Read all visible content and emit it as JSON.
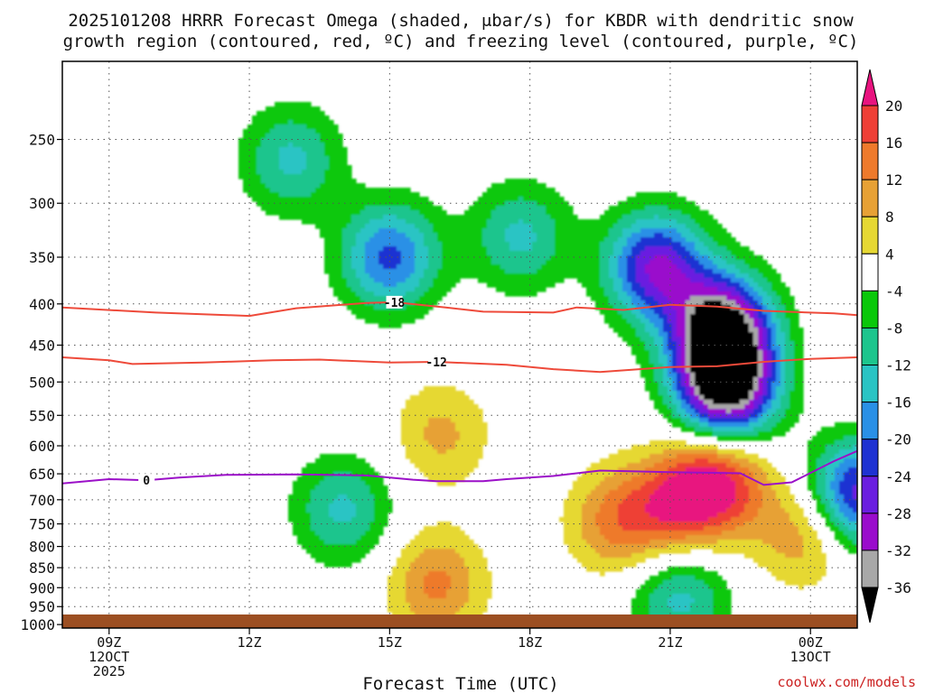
{
  "title_line1": "2025101208 HRRR Forecast Omega (shaded, μbar/s) for KBDR with dendritic snow",
  "title_line2": "growth region (contoured, red, ºC) and freezing level (contoured, purple, ºC)",
  "xlabel": "Forecast Time (UTC)",
  "credit": "coolwx.com/models",
  "chart_data": {
    "type": "heatmap",
    "title": "2025101208 HRRR Forecast Omega (shaded, μbar/s) for KBDR with dendritic snow growth region (contoured, red, ºC) and freezing level (contoured, purple, ºC)",
    "xlabel": "Forecast Time (UTC)",
    "ylabel": "",
    "x_range_hours_utc": [
      8,
      25
    ],
    "y_range_hpa": [
      1010,
      200
    ],
    "y_scale": "log-pressure",
    "grid": true,
    "x_ticks": [
      {
        "hour": 9,
        "line1": "09Z",
        "line2": "12OCT",
        "line3": "2025"
      },
      {
        "hour": 12,
        "line1": "12Z",
        "line2": "",
        "line3": ""
      },
      {
        "hour": 15,
        "line1": "15Z",
        "line2": "",
        "line3": ""
      },
      {
        "hour": 18,
        "line1": "18Z",
        "line2": "",
        "line3": ""
      },
      {
        "hour": 21,
        "line1": "21Z",
        "line2": "",
        "line3": ""
      },
      {
        "hour": 24,
        "line1": "00Z",
        "line2": "13OCT",
        "line3": ""
      }
    ],
    "y_ticks": [
      250,
      300,
      350,
      400,
      450,
      500,
      550,
      600,
      650,
      700,
      750,
      800,
      850,
      900,
      950,
      1000
    ],
    "colorbar": {
      "labels": [
        "20",
        "16",
        "12",
        "8",
        "4",
        "-4",
        "-8",
        "-12",
        "-16",
        "-20",
        "-24",
        "-28",
        "-32",
        "-36"
      ],
      "bins": [
        {
          "from": 20,
          "to": 24,
          "color": "#e8137f"
        },
        {
          "from": 16,
          "to": 20,
          "color": "#ee3f36"
        },
        {
          "from": 12,
          "to": 16,
          "color": "#ee7a2c"
        },
        {
          "from": 8,
          "to": 12,
          "color": "#e7a135"
        },
        {
          "from": 4,
          "to": 8,
          "color": "#e6d833"
        },
        {
          "from": -4,
          "to": 4,
          "color": "#ffffff"
        },
        {
          "from": -8,
          "to": -4,
          "color": "#0ac80a"
        },
        {
          "from": -12,
          "to": -8,
          "color": "#1dc58d"
        },
        {
          "from": -16,
          "to": -12,
          "color": "#2ac4c4"
        },
        {
          "from": -20,
          "to": -16,
          "color": "#2a90e6"
        },
        {
          "from": -24,
          "to": -20,
          "color": "#1e32d2"
        },
        {
          "from": -28,
          "to": -24,
          "color": "#6a1ee0"
        },
        {
          "from": -32,
          "to": -28,
          "color": "#9a0ccc"
        },
        {
          "from": -36,
          "to": -32,
          "color": "#a8a8a8"
        },
        {
          "from": -40,
          "to": -36,
          "color": "#000000"
        }
      ]
    },
    "omega_features": [
      {
        "hour": 22.1,
        "p": 430,
        "value": -38
      },
      {
        "hour": 22.2,
        "p": 510,
        "value": -38
      },
      {
        "hour": 20.7,
        "p": 360,
        "value": -28
      },
      {
        "hour": 15.0,
        "p": 350,
        "value": -21
      },
      {
        "hour": 12.9,
        "p": 265,
        "value": -13
      },
      {
        "hour": 17.8,
        "p": 330,
        "value": -13
      },
      {
        "hour": 22.0,
        "p": 665,
        "value": 22
      },
      {
        "hour": 21.0,
        "p": 720,
        "value": 14
      },
      {
        "hour": 19.8,
        "p": 745,
        "value": 12
      },
      {
        "hour": 16.0,
        "p": 890,
        "value": 13
      },
      {
        "hour": 16.1,
        "p": 580,
        "value": 9
      },
      {
        "hour": 23.9,
        "p": 770,
        "value": 12
      },
      {
        "hour": 25.0,
        "p": 690,
        "value": -27
      },
      {
        "hour": 21.2,
        "p": 920,
        "value": -14
      },
      {
        "hour": 14.0,
        "p": 720,
        "value": -13
      }
    ],
    "contours": [
      {
        "name": "-18",
        "color": "#ee4a3a",
        "label_hour": 15.1,
        "points": [
          [
            8.0,
            404
          ],
          [
            10.0,
            410
          ],
          [
            12.0,
            414
          ],
          [
            13.0,
            405
          ],
          [
            14.5,
            399
          ],
          [
            15.1,
            398
          ],
          [
            16.2,
            404
          ],
          [
            17.0,
            409
          ],
          [
            18.5,
            410
          ],
          [
            19.0,
            404
          ],
          [
            20.0,
            407
          ],
          [
            21.0,
            401
          ],
          [
            22.0,
            403
          ],
          [
            23.0,
            408
          ],
          [
            24.5,
            411
          ],
          [
            25.0,
            413
          ]
        ]
      },
      {
        "name": "-12",
        "color": "#ee4a3a",
        "label_hour": 16.0,
        "points": [
          [
            8.0,
            466
          ],
          [
            9.0,
            470
          ],
          [
            9.5,
            475
          ],
          [
            11.0,
            473
          ],
          [
            12.5,
            470
          ],
          [
            13.5,
            469
          ],
          [
            15.0,
            473
          ],
          [
            16.0,
            472
          ],
          [
            17.5,
            476
          ],
          [
            18.5,
            482
          ],
          [
            19.5,
            486
          ],
          [
            21.0,
            479
          ],
          [
            22.0,
            478
          ],
          [
            23.0,
            472
          ],
          [
            24.0,
            468
          ],
          [
            25.0,
            466
          ]
        ]
      },
      {
        "name": "0",
        "color": "#9b10c8",
        "label_hour": 9.8,
        "points": [
          [
            8.0,
            668
          ],
          [
            9.0,
            660
          ],
          [
            9.8,
            662
          ],
          [
            10.5,
            657
          ],
          [
            11.5,
            652
          ],
          [
            13.0,
            651
          ],
          [
            14.5,
            653
          ],
          [
            15.5,
            661
          ],
          [
            16.0,
            664
          ],
          [
            17.0,
            664
          ],
          [
            17.5,
            660
          ],
          [
            18.5,
            654
          ],
          [
            19.5,
            644
          ],
          [
            21.0,
            647
          ],
          [
            21.8,
            648
          ],
          [
            22.5,
            649
          ],
          [
            23.0,
            671
          ],
          [
            23.6,
            666
          ],
          [
            24.5,
            627
          ],
          [
            25.0,
            609
          ]
        ]
      }
    ],
    "ground_color": "#9c4f22"
  }
}
